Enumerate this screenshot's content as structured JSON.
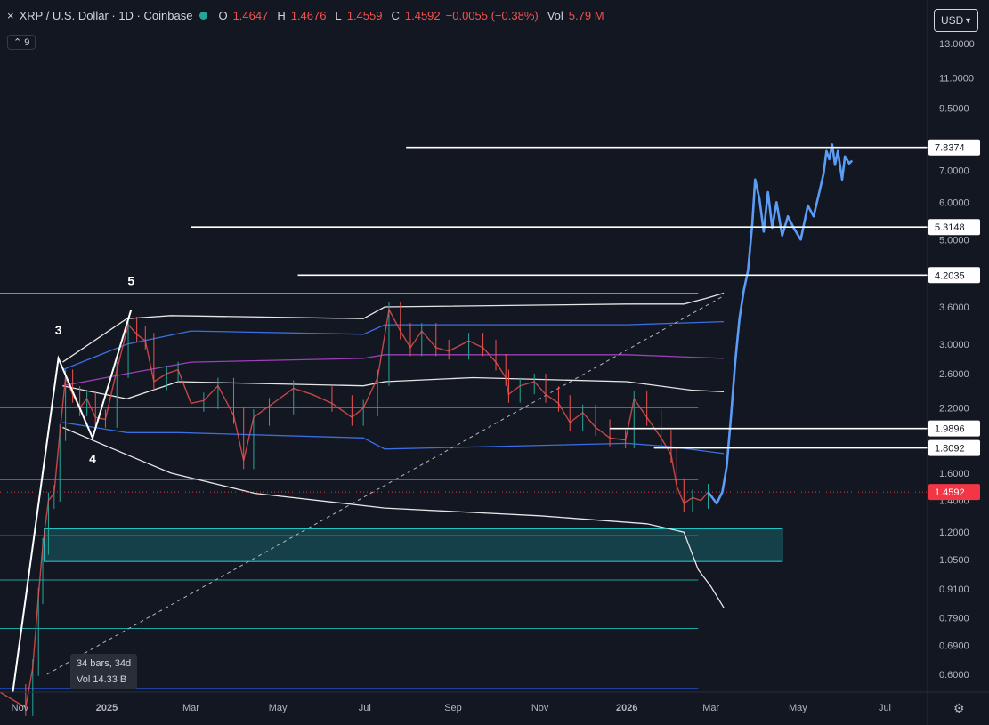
{
  "header": {
    "close_icon": "×",
    "symbol": "XRP / U.S. Dollar · 1D · Coinbase",
    "open_label": "O",
    "open": "1.4647",
    "high_label": "H",
    "high": "1.4676",
    "low_label": "L",
    "low": "1.4559",
    "close_label": "C",
    "close": "1.4592",
    "change": "−0.0055 (−0.38%)",
    "vol_label": "Vol",
    "vol": "5.79 M",
    "status_color": "#26a69a"
  },
  "indicators_toggle": {
    "icon": "chevron-up-icon",
    "label": "9"
  },
  "currency": {
    "label": "USD",
    "icon": "chevron-down-icon"
  },
  "measure_tooltip": {
    "line1": "34 bars, 34d",
    "line2": "Vol 14.33 B"
  },
  "settings_icon": "gear-icon",
  "colors": {
    "background": "#131722",
    "price_marker": "#f23645",
    "projection": "#5b9cf6",
    "zone": "#1fd4d4",
    "band_outer": "#e6e6e6",
    "band_mid": "#3b6ee0",
    "band_basis": "#9c3fb8"
  },
  "chart_data": {
    "type": "candlestick",
    "symbol": "XRP / U.S. Dollar",
    "interval": "1D",
    "y_scale": "log",
    "ylim": [
      0.55,
      14.0
    ],
    "x_range": [
      "2024-10-18",
      "2026-07-31"
    ],
    "x_tick_labels": [
      "Nov",
      "2025",
      "Mar",
      "May",
      "Jul",
      "Sep",
      "Nov",
      "2026",
      "Mar",
      "May",
      "Jul"
    ],
    "y_tick_labels": [
      "13.0000",
      "11.0000",
      "9.5000",
      "7.0000",
      "6.0000",
      "5.0000",
      "3.6000",
      "3.0000",
      "2.6000",
      "2.2000",
      "1.6000",
      "1.4000",
      "1.2000",
      "1.0500",
      "0.9100",
      "0.7900",
      "0.6900",
      "0.6000"
    ],
    "last_price": "1.4592",
    "price_path": [
      [
        "2024-10-18",
        0.55
      ],
      [
        "2024-11-05",
        0.51
      ],
      [
        "2024-11-10",
        0.62
      ],
      [
        "2024-11-14",
        0.88
      ],
      [
        "2024-11-17",
        1.12
      ],
      [
        "2024-11-21",
        1.4
      ],
      [
        "2024-11-25",
        1.45
      ],
      [
        "2024-11-29",
        1.95
      ],
      [
        "2024-12-03",
        2.55
      ],
      [
        "2024-12-08",
        2.35
      ],
      [
        "2024-12-13",
        2.2
      ],
      [
        "2024-12-18",
        2.3
      ],
      [
        "2024-12-24",
        2.1
      ],
      [
        "2024-12-31",
        2.08
      ],
      [
        "2025-01-08",
        2.65
      ],
      [
        "2025-01-16",
        3.3
      ],
      [
        "2025-01-22",
        3.15
      ],
      [
        "2025-01-28",
        3.05
      ],
      [
        "2025-02-03",
        2.5
      ],
      [
        "2025-02-12",
        2.6
      ],
      [
        "2025-02-20",
        2.65
      ],
      [
        "2025-03-01",
        2.25
      ],
      [
        "2025-03-10",
        2.28
      ],
      [
        "2025-03-20",
        2.45
      ],
      [
        "2025-03-31",
        2.12
      ],
      [
        "2025-04-07",
        1.7
      ],
      [
        "2025-04-14",
        2.1
      ],
      [
        "2025-04-25",
        2.22
      ],
      [
        "2025-05-12",
        2.42
      ],
      [
        "2025-05-25",
        2.35
      ],
      [
        "2025-06-08",
        2.25
      ],
      [
        "2025-06-22",
        2.1
      ],
      [
        "2025-06-30",
        2.2
      ],
      [
        "2025-07-10",
        2.55
      ],
      [
        "2025-07-18",
        3.55
      ],
      [
        "2025-07-26",
        3.2
      ],
      [
        "2025-08-02",
        2.95
      ],
      [
        "2025-08-10",
        3.2
      ],
      [
        "2025-08-20",
        2.95
      ],
      [
        "2025-08-29",
        2.9
      ],
      [
        "2025-09-12",
        3.05
      ],
      [
        "2025-09-22",
        2.95
      ],
      [
        "2025-10-01",
        2.75
      ],
      [
        "2025-10-08",
        2.55
      ],
      [
        "2025-10-10",
        2.35
      ],
      [
        "2025-10-18",
        2.45
      ],
      [
        "2025-10-28",
        2.5
      ],
      [
        "2025-11-05",
        2.35
      ],
      [
        "2025-11-14",
        2.25
      ],
      [
        "2025-11-22",
        2.05
      ],
      [
        "2025-12-01",
        2.15
      ],
      [
        "2025-12-10",
        2.0
      ],
      [
        "2025-12-20",
        1.9
      ],
      [
        "2025-12-31",
        1.88
      ],
      [
        "2026-01-06",
        2.3
      ],
      [
        "2026-01-15",
        2.1
      ],
      [
        "2026-01-25",
        1.9
      ],
      [
        "2026-02-01",
        1.75
      ],
      [
        "2026-02-05",
        1.5
      ],
      [
        "2026-02-10",
        1.38
      ],
      [
        "2026-02-16",
        1.42
      ],
      [
        "2026-02-22",
        1.4
      ],
      [
        "2026-02-27",
        1.4592
      ]
    ],
    "projection_path": [
      [
        "2026-02-27",
        1.4592
      ],
      [
        "2026-03-05",
        1.38
      ],
      [
        "2026-03-09",
        1.46
      ],
      [
        "2026-03-12",
        1.65
      ],
      [
        "2026-03-15",
        2.1
      ],
      [
        "2026-03-18",
        2.75
      ],
      [
        "2026-03-21",
        3.4
      ],
      [
        "2026-03-24",
        3.9
      ],
      [
        "2026-03-27",
        4.3
      ],
      [
        "2026-03-30",
        5.4
      ],
      [
        "2026-04-01",
        6.7
      ],
      [
        "2026-04-04",
        6.1
      ],
      [
        "2026-04-07",
        5.2
      ],
      [
        "2026-04-10",
        6.3
      ],
      [
        "2026-04-13",
        5.3
      ],
      [
        "2026-04-16",
        6.0
      ],
      [
        "2026-04-20",
        5.1
      ],
      [
        "2026-04-24",
        5.6
      ],
      [
        "2026-04-28",
        5.3
      ],
      [
        "2026-05-03",
        5.0
      ],
      [
        "2026-05-08",
        5.9
      ],
      [
        "2026-05-12",
        5.6
      ],
      [
        "2026-05-16",
        6.3
      ],
      [
        "2026-05-19",
        6.9
      ],
      [
        "2026-05-21",
        7.7
      ],
      [
        "2026-05-23",
        7.4
      ],
      [
        "2026-05-25",
        7.95
      ],
      [
        "2026-05-27",
        7.2
      ],
      [
        "2026-05-29",
        7.7
      ],
      [
        "2026-06-01",
        6.7
      ],
      [
        "2026-06-03",
        7.5
      ],
      [
        "2026-06-06",
        7.25
      ],
      [
        "2026-06-08",
        7.35
      ]
    ],
    "bands": [
      {
        "kind": "upper_outer",
        "points": [
          [
            "2024-12-01",
            2.75
          ],
          [
            "2025-01-15",
            3.4
          ],
          [
            "2025-02-15",
            3.45
          ],
          [
            "2025-06-30",
            3.4
          ],
          [
            "2025-07-15",
            3.6
          ],
          [
            "2026-01-01",
            3.65
          ],
          [
            "2026-02-10",
            3.65
          ],
          [
            "2026-02-25",
            3.75
          ],
          [
            "2026-03-10",
            3.85
          ]
        ]
      },
      {
        "kind": "upper_mid",
        "points": [
          [
            "2024-12-01",
            2.65
          ],
          [
            "2025-01-15",
            3.0
          ],
          [
            "2025-03-01",
            3.2
          ],
          [
            "2025-06-30",
            3.15
          ],
          [
            "2025-07-15",
            3.3
          ],
          [
            "2026-01-01",
            3.3
          ],
          [
            "2026-03-10",
            3.35
          ]
        ]
      },
      {
        "kind": "basis",
        "points": [
          [
            "2024-12-01",
            2.45
          ],
          [
            "2025-01-15",
            2.6
          ],
          [
            "2025-03-01",
            2.75
          ],
          [
            "2025-06-30",
            2.8
          ],
          [
            "2025-07-15",
            2.85
          ],
          [
            "2026-01-01",
            2.85
          ],
          [
            "2026-03-10",
            2.8
          ]
        ]
      },
      {
        "kind": "inner_upper",
        "points": [
          [
            "2024-12-01",
            2.45
          ],
          [
            "2025-01-15",
            2.3
          ],
          [
            "2025-02-20",
            2.5
          ],
          [
            "2025-06-30",
            2.45
          ],
          [
            "2025-07-15",
            2.5
          ],
          [
            "2025-09-15",
            2.55
          ],
          [
            "2026-01-01",
            2.5
          ],
          [
            "2026-02-15",
            2.4
          ],
          [
            "2026-03-10",
            2.38
          ]
        ]
      },
      {
        "kind": "inner_lower",
        "points": [
          [
            "2024-12-01",
            2.05
          ],
          [
            "2025-01-15",
            1.95
          ],
          [
            "2025-02-20",
            1.95
          ],
          [
            "2025-06-30",
            1.9
          ],
          [
            "2025-07-15",
            1.8
          ],
          [
            "2026-01-01",
            1.85
          ],
          [
            "2026-02-01",
            1.82
          ],
          [
            "2026-03-10",
            1.76
          ]
        ]
      },
      {
        "kind": "lower_outer",
        "points": [
          [
            "2024-12-01",
            2.0
          ],
          [
            "2025-01-15",
            1.75
          ],
          [
            "2025-02-15",
            1.6
          ],
          [
            "2025-04-15",
            1.45
          ],
          [
            "2025-07-15",
            1.35
          ],
          [
            "2025-11-01",
            1.3
          ],
          [
            "2026-01-15",
            1.25
          ],
          [
            "2026-02-10",
            1.2
          ],
          [
            "2026-02-20",
            1.0
          ],
          [
            "2026-03-01",
            0.92
          ],
          [
            "2026-03-10",
            0.83
          ]
        ]
      }
    ],
    "elliott_wave": {
      "points": [
        [
          "2024-10-27",
          0.55
        ],
        [
          "2024-11-28",
          2.8
        ],
        [
          "2024-12-22",
          1.9
        ],
        [
          "2025-01-18",
          3.55
        ]
      ],
      "labels": [
        {
          "text": "3",
          "x": "2024-11-28",
          "y": 3.15
        },
        {
          "text": "4",
          "x": "2024-12-22",
          "y": 1.68
        },
        {
          "text": "5",
          "x": "2025-01-18",
          "y": 4.0
        }
      ]
    },
    "trend_line": {
      "from": [
        "2024-11-20",
        0.6
      ],
      "to": [
        "2026-03-10",
        3.8
      ],
      "style": "dashed"
    },
    "horizontal_levels": [
      {
        "label": "7.8374",
        "price": 7.8374,
        "start": "2025-07-30"
      },
      {
        "label": "5.3148",
        "price": 5.3148,
        "start": "2025-03-01"
      },
      {
        "label": "4.2035",
        "price": 4.2035,
        "start": "2025-05-15"
      },
      {
        "label": "1.9896",
        "price": 1.9896,
        "start": "2025-12-20"
      },
      {
        "label": "1.8092",
        "price": 1.8092,
        "start": "2026-01-20"
      }
    ],
    "support_lines": [
      {
        "price": 3.85,
        "kind": "gray"
      },
      {
        "price": 2.2,
        "kind": "red"
      },
      {
        "price": 1.55,
        "kind": "green"
      },
      {
        "price": 1.18,
        "kind": "teal"
      },
      {
        "price": 0.95,
        "kind": "teal"
      },
      {
        "price": 0.75,
        "kind": "teal"
      },
      {
        "price": 0.56,
        "kind": "blue"
      }
    ],
    "demand_zone": {
      "from": "2024-11-18",
      "to": "2026-04-20",
      "high": 1.22,
      "low": 1.04
    }
  }
}
